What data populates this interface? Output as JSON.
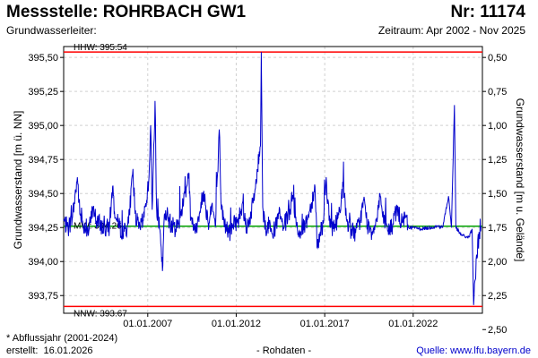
{
  "header": {
    "title": "Messstelle: ROHRBACH GW1",
    "number": "Nr: 11174",
    "aquifer_label": "Grundwasserleiter:",
    "period": "Zeitraum: Apr 2002 - Nov 2025"
  },
  "footer": {
    "note": "* Abflussjahr (2001-2024)",
    "created_label": "erstellt:",
    "created_date": "16.01.2026",
    "data_type": "- Rohdaten -",
    "source": "Quelle:  www.lfu.bayern.de"
  },
  "chart_data": {
    "type": "line",
    "title": "",
    "ylabel": "Grundwasserstand [m ü. NN]",
    "ylabel_right": "Grundwasserstand [m u. Gelände]",
    "xlim": [
      "2002-04-01",
      "2025-11-30"
    ],
    "ylim": [
      393.62,
      395.58
    ],
    "x_ticks": [
      "01.01.2007",
      "01.01.2012",
      "01.01.2017",
      "01.01.2022"
    ],
    "y_ticks": [
      "393,75",
      "394,00",
      "394,25",
      "394,50",
      "394,75",
      "395,00",
      "395,25",
      "395,50"
    ],
    "y_tick_values": [
      393.75,
      394.0,
      394.25,
      394.5,
      394.75,
      395.0,
      395.25,
      395.5
    ],
    "y2_ticks": [
      "0,50",
      "0,75",
      "1,00",
      "1,25",
      "1,50",
      "1,75",
      "2,00",
      "2,25",
      "2,50"
    ],
    "y2_tick_values": [
      0.5,
      0.75,
      1.0,
      1.25,
      1.5,
      1.75,
      2.0,
      2.25,
      2.5
    ],
    "grid": true,
    "reference_lines": [
      {
        "label": "HHW: 395.54",
        "value": 395.54,
        "color": "#ff0000"
      },
      {
        "label": "MW: 394.26",
        "value": 394.26,
        "color": "#00a000"
      },
      {
        "label": "NNW: 393.67",
        "value": 393.67,
        "color": "#ff0000"
      }
    ],
    "series": [
      {
        "color": "#0000cc",
        "points": [
          [
            "2002-04-01",
            394.3
          ],
          [
            "2002-07-01",
            394.24
          ],
          [
            "2002-10-01",
            394.33
          ],
          [
            "2003-01-10",
            394.62
          ],
          [
            "2003-03-01",
            394.35
          ],
          [
            "2003-06-01",
            394.26
          ],
          [
            "2003-09-01",
            394.22
          ],
          [
            "2003-12-01",
            394.4
          ],
          [
            "2004-02-01",
            394.3
          ],
          [
            "2004-05-01",
            394.27
          ],
          [
            "2004-08-01",
            394.23
          ],
          [
            "2004-11-01",
            394.26
          ],
          [
            "2005-01-05",
            394.55
          ],
          [
            "2005-03-01",
            394.32
          ],
          [
            "2005-06-01",
            394.25
          ],
          [
            "2005-09-01",
            394.22
          ],
          [
            "2005-12-01",
            394.28
          ],
          [
            "2006-03-01",
            394.68
          ],
          [
            "2006-04-15",
            394.35
          ],
          [
            "2006-07-01",
            394.24
          ],
          [
            "2006-10-01",
            394.3
          ],
          [
            "2007-01-20",
            394.58
          ],
          [
            "2007-03-01",
            395.0
          ],
          [
            "2007-04-01",
            394.38
          ],
          [
            "2007-06-01",
            395.18
          ],
          [
            "2007-07-01",
            394.4
          ],
          [
            "2007-09-01",
            394.24
          ],
          [
            "2007-11-01",
            393.93
          ],
          [
            "2007-12-01",
            394.28
          ],
          [
            "2008-02-01",
            394.35
          ],
          [
            "2008-05-01",
            394.27
          ],
          [
            "2008-08-01",
            394.24
          ],
          [
            "2008-11-01",
            394.32
          ],
          [
            "2009-02-01",
            394.5
          ],
          [
            "2009-05-01",
            394.65
          ],
          [
            "2009-06-01",
            394.3
          ],
          [
            "2009-09-01",
            394.22
          ],
          [
            "2009-12-01",
            394.35
          ],
          [
            "2010-03-01",
            394.52
          ],
          [
            "2010-06-01",
            394.28
          ],
          [
            "2010-08-15",
            394.42
          ],
          [
            "2010-11-01",
            394.26
          ],
          [
            "2011-01-15",
            394.97
          ],
          [
            "2011-03-01",
            394.38
          ],
          [
            "2011-06-01",
            394.25
          ],
          [
            "2011-09-01",
            394.21
          ],
          [
            "2011-12-01",
            394.3
          ],
          [
            "2012-02-01",
            394.28
          ],
          [
            "2012-05-01",
            394.42
          ],
          [
            "2012-08-01",
            394.25
          ],
          [
            "2012-11-01",
            394.35
          ],
          [
            "2013-01-15",
            394.5
          ],
          [
            "2013-05-15",
            394.85
          ],
          [
            "2013-06-01",
            395.54
          ],
          [
            "2013-07-01",
            394.4
          ],
          [
            "2013-09-01",
            394.24
          ],
          [
            "2013-12-01",
            394.28
          ],
          [
            "2014-03-01",
            394.22
          ],
          [
            "2014-06-01",
            394.35
          ],
          [
            "2014-09-01",
            394.25
          ],
          [
            "2014-12-01",
            394.32
          ],
          [
            "2015-03-01",
            394.44
          ],
          [
            "2015-06-01",
            394.26
          ],
          [
            "2015-09-01",
            394.2
          ],
          [
            "2015-12-01",
            394.28
          ],
          [
            "2016-03-01",
            394.38
          ],
          [
            "2016-06-15",
            394.55
          ],
          [
            "2016-08-01",
            394.1
          ],
          [
            "2016-10-01",
            394.22
          ],
          [
            "2016-12-01",
            394.28
          ],
          [
            "2017-02-01",
            394.62
          ],
          [
            "2017-04-01",
            394.3
          ],
          [
            "2017-07-01",
            394.24
          ],
          [
            "2017-10-01",
            394.32
          ],
          [
            "2018-01-15",
            394.55
          ],
          [
            "2018-04-01",
            394.3
          ],
          [
            "2018-07-01",
            394.23
          ],
          [
            "2018-10-01",
            394.21
          ],
          [
            "2019-01-01",
            394.3
          ],
          [
            "2019-03-15",
            394.45
          ],
          [
            "2019-06-01",
            394.27
          ],
          [
            "2019-09-01",
            394.22
          ],
          [
            "2019-12-01",
            394.3
          ],
          [
            "2020-02-15",
            394.5
          ],
          [
            "2020-05-01",
            394.28
          ],
          [
            "2020-08-01",
            394.23
          ],
          [
            "2020-11-01",
            394.26
          ],
          [
            "2021-02-01",
            394.4
          ],
          [
            "2021-05-01",
            394.28
          ],
          [
            "2021-07-15",
            394.32
          ],
          [
            "2021-10-01",
            394.25
          ],
          [
            "2022-01-01",
            394.25
          ],
          [
            "2022-06-01",
            394.24
          ],
          [
            "2023-01-01",
            394.25
          ],
          [
            "2023-06-01",
            394.26
          ],
          [
            "2023-09-01",
            394.25
          ],
          [
            "2024-01-01",
            394.48
          ],
          [
            "2024-03-01",
            394.25
          ],
          [
            "2024-05-01",
            395.15
          ],
          [
            "2024-06-01",
            394.25
          ],
          [
            "2024-09-01",
            394.2
          ],
          [
            "2025-01-01",
            394.18
          ],
          [
            "2025-03-01",
            394.18
          ],
          [
            "2025-05-01",
            394.24
          ],
          [
            "2025-06-01",
            393.68
          ],
          [
            "2025-08-01",
            394.05
          ],
          [
            "2025-11-01",
            394.26
          ]
        ]
      }
    ]
  }
}
